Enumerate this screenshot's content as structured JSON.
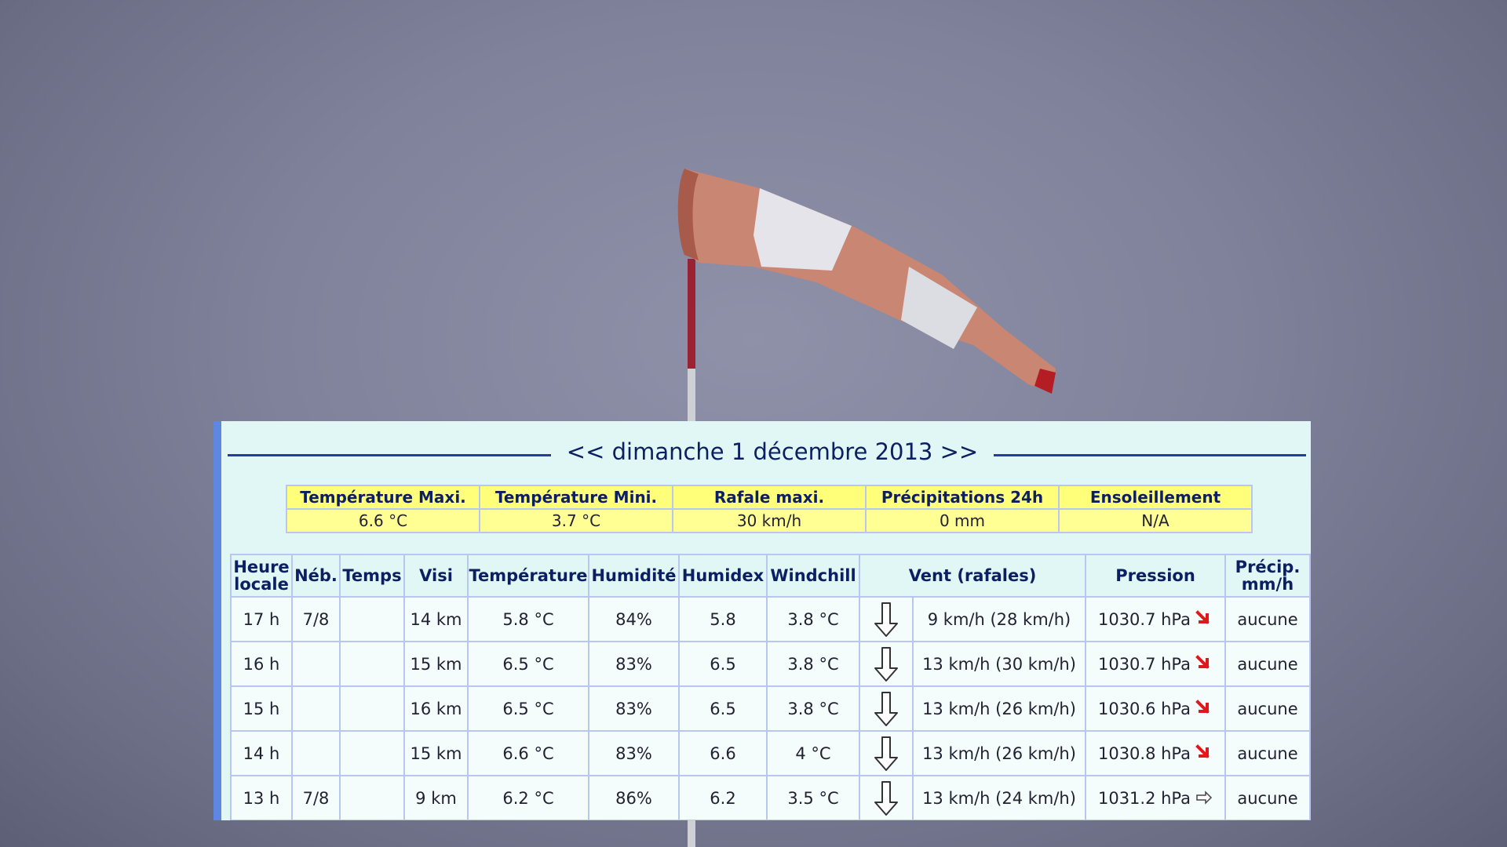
{
  "date_nav": {
    "prev": "<<",
    "date": "dimanche 1 décembre 2013",
    "next": ">>"
  },
  "summary": {
    "headers": [
      "Température Maxi.",
      "Température Mini.",
      "Rafale maxi.",
      "Précipitations 24h",
      "Ensoleillement"
    ],
    "values": [
      "6.6 °C",
      "3.7 °C",
      "30 km/h",
      "0 mm",
      "N/A"
    ]
  },
  "table": {
    "headers": {
      "heure_line1": "Heure",
      "heure_line2": "locale",
      "neb": "Néb.",
      "temps": "Temps",
      "visi": "Visi",
      "temperature": "Température",
      "humidite": "Humidité",
      "humidex": "Humidex",
      "windchill": "Windchill",
      "vent": "Vent (rafales)",
      "pression": "Pression",
      "precip_line1": "Précip.",
      "precip_line2": "mm/h"
    },
    "rows": [
      {
        "heure": "17 h",
        "neb": "7/8",
        "temps": "",
        "visi": "14 km",
        "temp": "5.8 °C",
        "hum": "84%",
        "humidex": "5.8",
        "windchill": "3.8 °C",
        "wind_icon": "arrow-down-icon",
        "vent": "9 km/h (28 km/h)",
        "pression": "1030.7 hPa",
        "trend_icon": "trend-down-icon",
        "precip": "aucune"
      },
      {
        "heure": "16 h",
        "neb": "",
        "temps": "",
        "visi": "15 km",
        "temp": "6.5 °C",
        "hum": "83%",
        "humidex": "6.5",
        "windchill": "3.8 °C",
        "wind_icon": "arrow-down-icon",
        "vent": "13 km/h (30 km/h)",
        "pression": "1030.7 hPa",
        "trend_icon": "trend-down-icon",
        "precip": "aucune"
      },
      {
        "heure": "15 h",
        "neb": "",
        "temps": "",
        "visi": "16 km",
        "temp": "6.5 °C",
        "hum": "83%",
        "humidex": "6.5",
        "windchill": "3.8 °C",
        "wind_icon": "arrow-down-icon",
        "vent": "13 km/h (26 km/h)",
        "pression": "1030.6 hPa",
        "trend_icon": "trend-down-icon",
        "precip": "aucune"
      },
      {
        "heure": "14 h",
        "neb": "",
        "temps": "",
        "visi": "15 km",
        "temp": "6.6 °C",
        "hum": "83%",
        "humidex": "6.6",
        "windchill": "4 °C",
        "wind_icon": "arrow-down-icon",
        "vent": "13 km/h (26 km/h)",
        "pression": "1030.8 hPa",
        "trend_icon": "trend-down-icon",
        "precip": "aucune"
      },
      {
        "heure": "13 h",
        "neb": "7/8",
        "temps": "",
        "visi": "9 km",
        "temp": "6.2 °C",
        "hum": "86%",
        "humidex": "6.2",
        "windchill": "3.5 °C",
        "wind_icon": "arrow-down-icon",
        "vent": "13 km/h (24 km/h)",
        "pression": "1031.2 hPa",
        "trend_icon": "trend-right-icon",
        "precip": "aucune"
      }
    ]
  },
  "colors": {
    "panel_bg": "#e0f7f5",
    "accent_blue": "#1c3fa5",
    "summary_yellow": "#ffff7a",
    "trend_red": "#e0181b"
  }
}
